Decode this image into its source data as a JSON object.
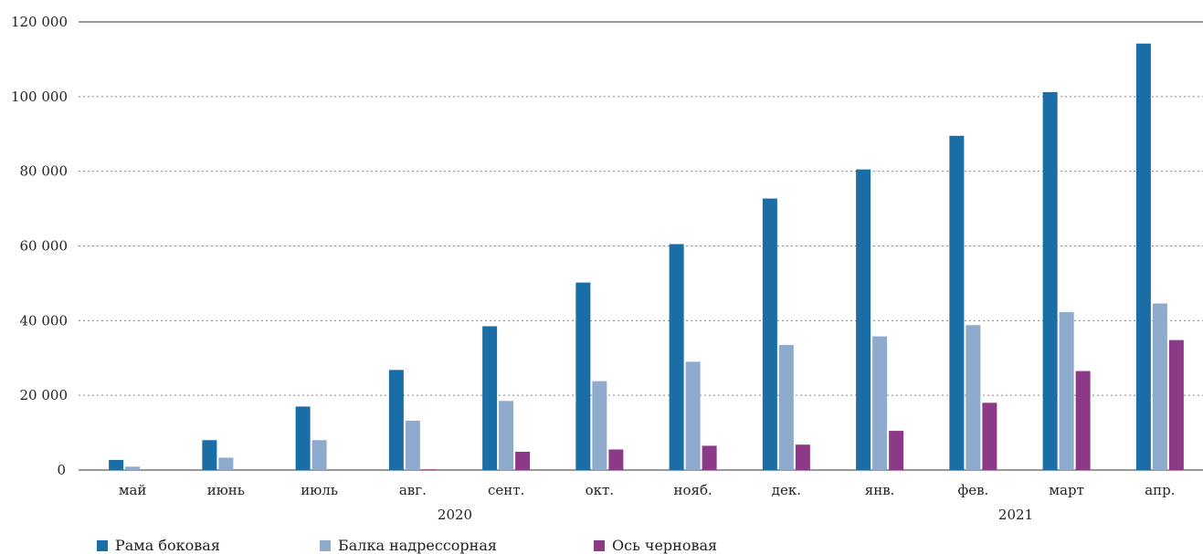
{
  "chart_data": {
    "type": "bar",
    "categories": [
      "май",
      "июнь",
      "июль",
      "авг.",
      "сент.",
      "окт.",
      "нояб.",
      "дек.",
      "янв.",
      "фев.",
      "март",
      "апр."
    ],
    "year_labels": [
      "2020",
      "2021"
    ],
    "series": [
      {
        "name": "Рама боковая",
        "color": "#1a6ea5",
        "values": [
          2700,
          8000,
          17000,
          26800,
          38500,
          50200,
          60500,
          72700,
          80500,
          89500,
          101200,
          114200
        ]
      },
      {
        "name": "Балка надрессорная",
        "color": "#8eaacd",
        "values": [
          900,
          3300,
          8000,
          13200,
          18500,
          23800,
          29000,
          33500,
          35800,
          38800,
          42300,
          44600
        ]
      },
      {
        "name": "Ось черновая",
        "color": "#8c3a88",
        "values": [
          0,
          0,
          0,
          200,
          4900,
          5500,
          6500,
          6800,
          10500,
          18000,
          26500,
          34800
        ]
      }
    ],
    "yticks": [
      "0",
      "20 000",
      "40 000",
      "60 000",
      "80 000",
      "100 000",
      "120 000"
    ],
    "ylim": [
      0,
      120000
    ],
    "grid": true,
    "legend_position": "bottom-left"
  }
}
